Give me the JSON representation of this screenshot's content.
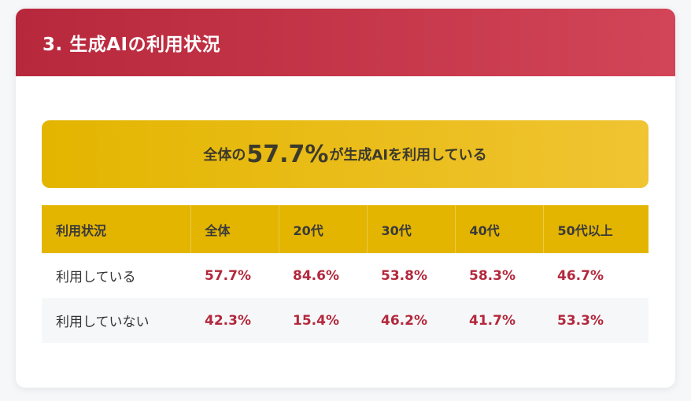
{
  "section": {
    "title": "3. 生成AIの利用状況"
  },
  "highlight": {
    "prefix": "全体の",
    "value": "57.7%",
    "suffix": "が生成AIを利用している"
  },
  "table": {
    "headers": [
      "利用状況",
      "全体",
      "20代",
      "30代",
      "40代",
      "50代以上"
    ],
    "rows": [
      {
        "label": "利用している",
        "values": [
          "57.7%",
          "84.6%",
          "53.8%",
          "58.3%",
          "46.7%"
        ]
      },
      {
        "label": "利用していない",
        "values": [
          "42.3%",
          "15.4%",
          "46.2%",
          "41.7%",
          "53.3%"
        ]
      }
    ]
  },
  "colors": {
    "header_red": "#c3303f",
    "accent_gold": "#e3b500",
    "value_red": "#b3283c"
  }
}
